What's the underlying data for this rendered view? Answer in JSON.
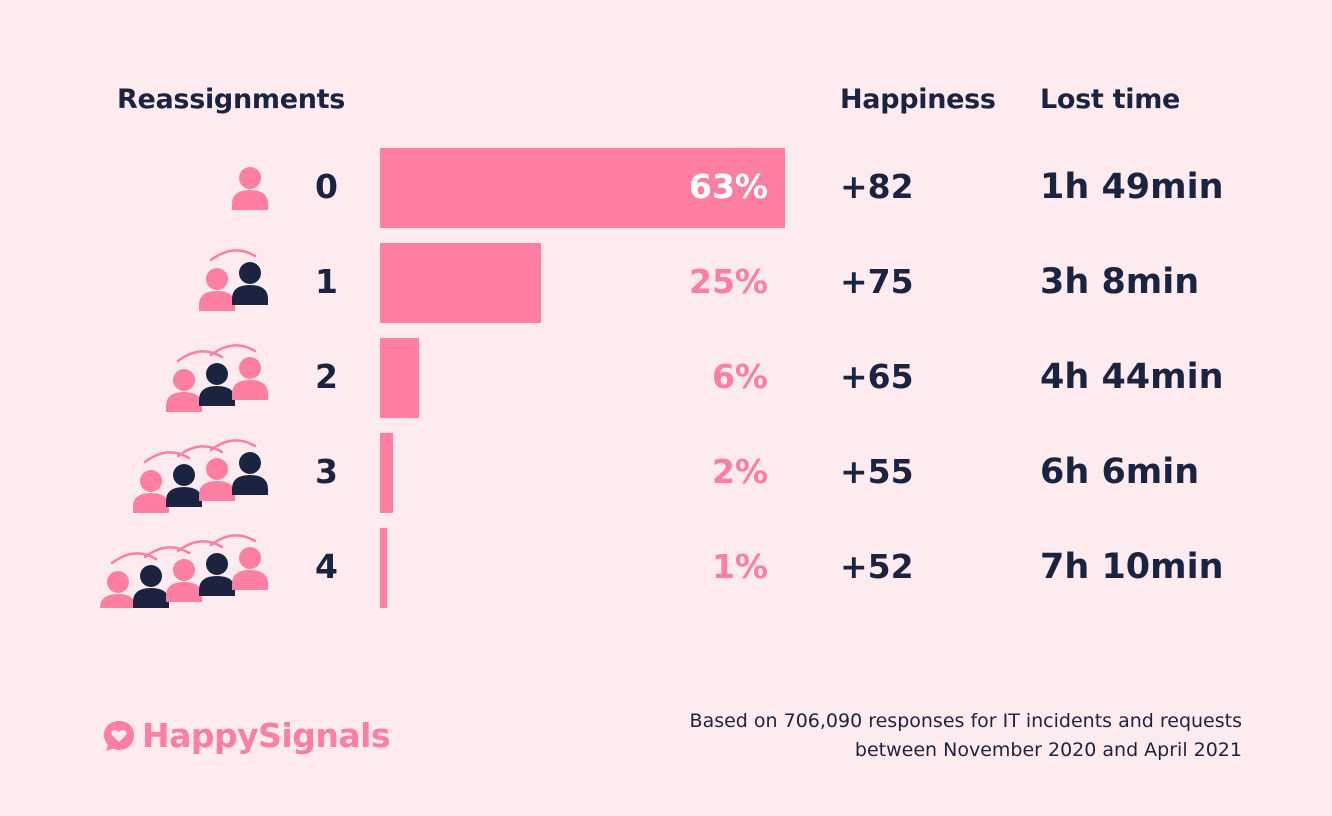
{
  "headers": {
    "reassignments": "Reassignments",
    "happiness": "Happiness",
    "lost_time": "Lost time"
  },
  "colors": {
    "pink": "#ff7fa3",
    "navy": "#1c2340",
    "background": "#fdebef"
  },
  "chart_data": {
    "type": "bar",
    "orientation": "horizontal",
    "categories": [
      "0",
      "1",
      "2",
      "3",
      "4"
    ],
    "values": [
      63,
      25,
      6,
      2,
      1
    ],
    "value_labels": [
      "63%",
      "25%",
      "6%",
      "2%",
      "1%"
    ],
    "happiness": [
      "+82",
      "+75",
      "+65",
      "+55",
      "+52"
    ],
    "lost_time": [
      "1h 49min",
      "3h 8min",
      "4h 44min",
      "6h 6min",
      "7h 10min"
    ],
    "people_icons": [
      [
        "pink"
      ],
      [
        "pink",
        "navy"
      ],
      [
        "pink",
        "navy",
        "pink"
      ],
      [
        "pink",
        "navy",
        "pink",
        "navy"
      ],
      [
        "pink",
        "navy",
        "pink",
        "navy",
        "pink"
      ]
    ],
    "xlim": [
      0,
      63
    ]
  },
  "logo": {
    "text": "HappySignals",
    "icon": "heart-speech-bubble-icon"
  },
  "footnote": {
    "line1": "Based on 706,090 responses for IT incidents and requests",
    "line2": "between November 2020 and April 2021"
  }
}
